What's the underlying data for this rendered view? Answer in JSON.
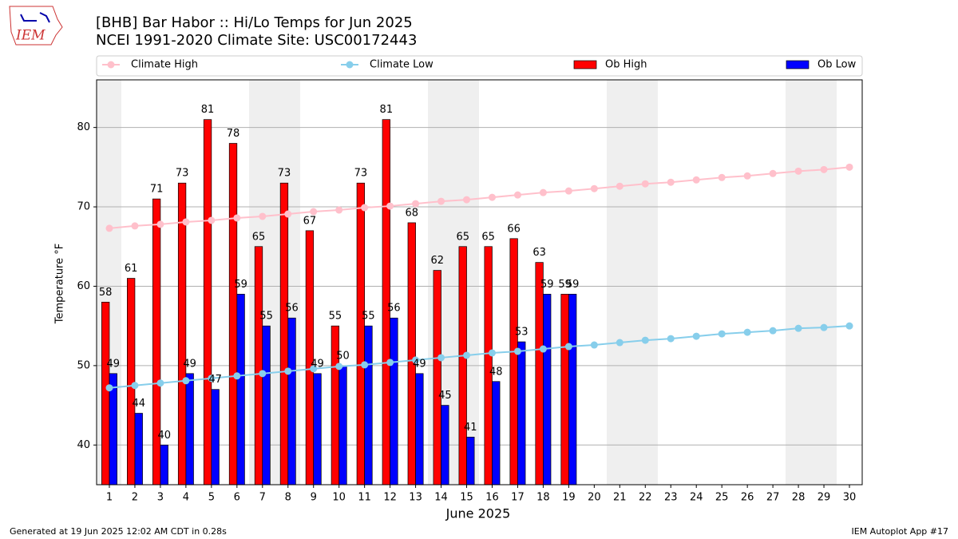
{
  "logo_text": "IEM",
  "footer": {
    "left": "Generated at 19 Jun 2025 12:02 AM CDT in 0.28s",
    "right": "IEM Autoplot App #17"
  },
  "chart_data": {
    "type": "bar",
    "title": "[BHB] Bar Habor :: Hi/Lo Temps for Jun 2025",
    "subtitle": "NCEI 1991-2020 Climate Site: USC00172443",
    "x_label": "June 2025",
    "y_label": "Temperature $^\\circ$F",
    "x": [
      1,
      2,
      3,
      4,
      5,
      6,
      7,
      8,
      9,
      10,
      11,
      12,
      13,
      14,
      15,
      16,
      17,
      18,
      19,
      20,
      21,
      22,
      23,
      24,
      25,
      26,
      27,
      28,
      29,
      30
    ],
    "xlim": [
      0.5,
      30.5
    ],
    "xticks": [
      1,
      2,
      3,
      4,
      5,
      6,
      7,
      8,
      9,
      10,
      11,
      12,
      13,
      14,
      15,
      16,
      17,
      18,
      19,
      20,
      21,
      22,
      23,
      24,
      25,
      26,
      27,
      28,
      29,
      30
    ],
    "ylim": [
      35,
      86
    ],
    "yticks": [
      40,
      50,
      60,
      70,
      80
    ],
    "grid": true,
    "series": [
      {
        "name": "Climate High",
        "color": "#ffc0cb",
        "kind": "line",
        "values": [
          67.3,
          67.6,
          67.8,
          68.1,
          68.3,
          68.6,
          68.8,
          69.1,
          69.4,
          69.6,
          69.9,
          70.1,
          70.4,
          70.7,
          70.9,
          71.2,
          71.5,
          71.8,
          72.0,
          72.3,
          72.6,
          72.9,
          73.1,
          73.4,
          73.7,
          73.9,
          74.2,
          74.5,
          74.7,
          75.0
        ]
      },
      {
        "name": "Climate Low",
        "color": "#87ceeb",
        "kind": "line",
        "values": [
          47.2,
          47.5,
          47.8,
          48.1,
          48.4,
          48.7,
          49.0,
          49.3,
          49.6,
          49.9,
          50.1,
          50.4,
          50.7,
          51.0,
          51.3,
          51.6,
          51.8,
          52.1,
          52.4,
          52.6,
          52.9,
          53.2,
          53.4,
          53.7,
          54.0,
          54.2,
          54.4,
          54.7,
          54.8,
          55.0
        ]
      },
      {
        "name": "Ob High",
        "color": "#ff0000",
        "kind": "bar",
        "values": [
          58,
          61,
          71,
          73,
          81,
          78,
          65,
          73,
          67,
          55,
          73,
          81,
          68,
          62,
          65,
          65,
          66,
          63,
          59,
          null,
          null,
          null,
          null,
          null,
          null,
          null,
          null,
          null,
          null,
          null
        ]
      },
      {
        "name": "Ob Low",
        "color": "#0000ff",
        "kind": "bar",
        "values": [
          49,
          44,
          40,
          49,
          47,
          59,
          55,
          56,
          49,
          50,
          55,
          56,
          49,
          45,
          41,
          48,
          53,
          59,
          59,
          null,
          null,
          null,
          null,
          null,
          null,
          null,
          null,
          null,
          null,
          null
        ]
      }
    ]
  }
}
